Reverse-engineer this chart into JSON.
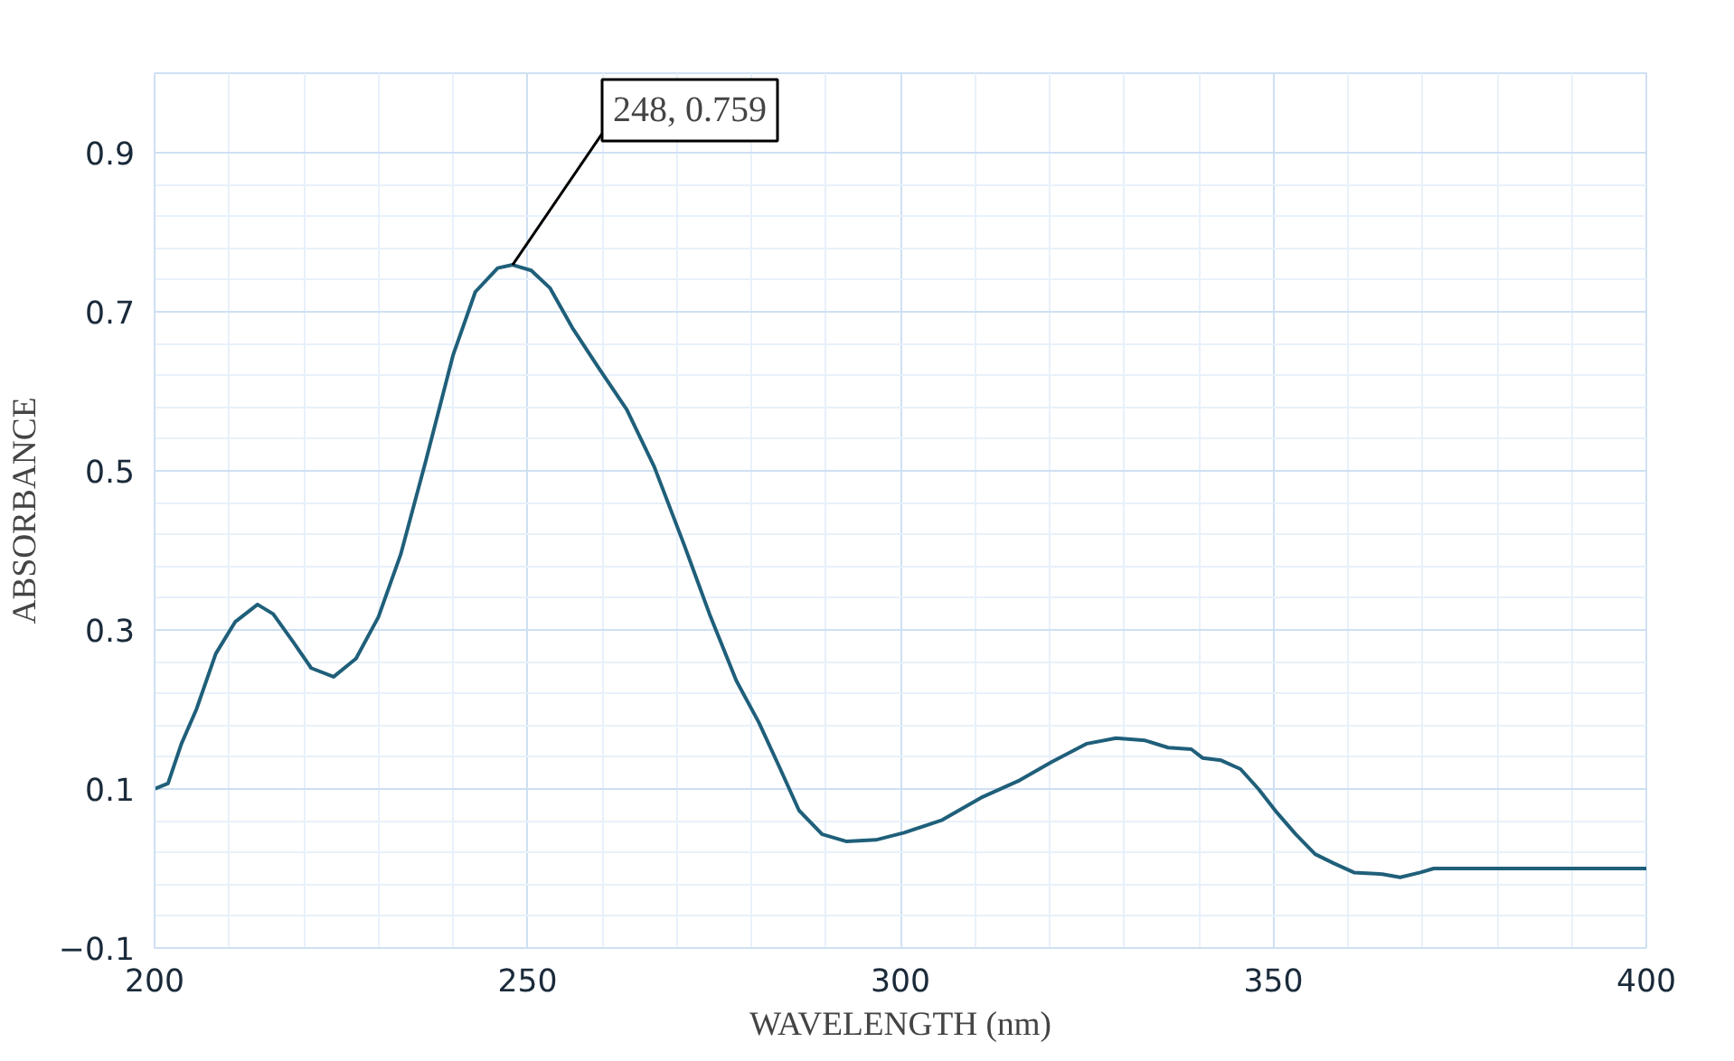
{
  "chart_data": {
    "type": "line",
    "xlabel": "WAVELENGTH (nm)",
    "ylabel": "ABSORBANCE",
    "xlim": [
      200,
      400
    ],
    "xticks": [
      200,
      250,
      300,
      350,
      400
    ],
    "ylim": [
      -0.1,
      1.0
    ],
    "yticks": [
      -0.1,
      0.1,
      0.3,
      0.5,
      0.7,
      0.9
    ],
    "grid": true,
    "marker": "none",
    "line_style": "solid",
    "annotations": [
      {
        "text": "248, 0.759",
        "x": 248,
        "y": 0.759
      }
    ],
    "series": [
      {
        "color": "#1f5f7a",
        "x": [
          200,
          201.8,
          203.6,
          205.6,
          208.2,
          210.8,
          213.8,
          215.9,
          218.5,
          221,
          224,
          227,
          230,
          233,
          236.4,
          240,
          243,
          246,
          248,
          250.5,
          253,
          256,
          259.5,
          263.3,
          267,
          271,
          274.4,
          278,
          281,
          283.8,
          286.4,
          289.5,
          292.8,
          296.7,
          300.5,
          305.6,
          310.8,
          316,
          320.3,
          325,
          328.9,
          332.8,
          335.9,
          339,
          340.5,
          343,
          345.6,
          348,
          350.5,
          353,
          355.6,
          358,
          360.8,
          364.6,
          367,
          369.7,
          371.5,
          381,
          390,
          400
        ],
        "values": [
          0.1,
          0.107,
          0.157,
          0.2,
          0.27,
          0.31,
          0.332,
          0.32,
          0.286,
          0.252,
          0.241,
          0.264,
          0.316,
          0.395,
          0.514,
          0.645,
          0.725,
          0.755,
          0.759,
          0.752,
          0.73,
          0.68,
          0.63,
          0.577,
          0.505,
          0.407,
          0.32,
          0.236,
          0.184,
          0.127,
          0.073,
          0.043,
          0.034,
          0.036,
          0.045,
          0.061,
          0.089,
          0.111,
          0.134,
          0.157,
          0.164,
          0.161,
          0.152,
          0.15,
          0.139,
          0.136,
          0.125,
          0.1,
          0.07,
          0.043,
          0.018,
          0.007,
          -0.005,
          -0.007,
          -0.011,
          -0.005,
          0,
          0,
          0,
          0
        ]
      }
    ]
  }
}
